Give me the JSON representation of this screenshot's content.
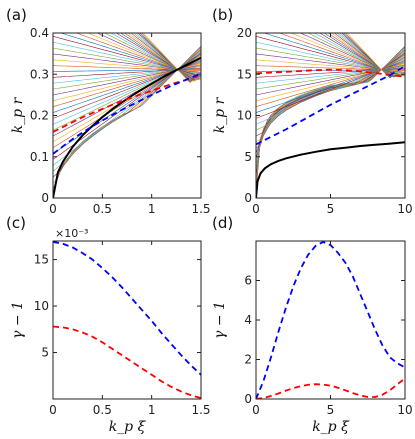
{
  "chart_data": [
    {
      "type": "line",
      "panel_label": "(a)",
      "xlabel": "",
      "ylabel": "k_p r",
      "xlim": [
        0,
        1.5
      ],
      "ylim": [
        0,
        0.4
      ],
      "xticks": [
        0,
        0.5,
        1,
        1.5
      ],
      "xtick_labels": [
        "0",
        "0.5",
        "1",
        "1.5"
      ],
      "yticks": [
        0,
        0.1,
        0.2,
        0.3,
        0.4
      ],
      "ytick_labels": [
        "0",
        "0.1",
        "0.2",
        "0.3",
        "0.4"
      ],
      "grid": false,
      "background_trajectories": {
        "count": 45,
        "style": "thin multicolored lines"
      },
      "series": [
        {
          "color": "#000000",
          "dash": "solid",
          "x": [
            0,
            0.05,
            0.1,
            0.2,
            0.3,
            0.4,
            0.5,
            0.6,
            0.7,
            0.8,
            0.9,
            1.0,
            1.1,
            1.2,
            1.3,
            1.4,
            1.5
          ],
          "y": [
            0,
            0.062,
            0.088,
            0.124,
            0.152,
            0.175,
            0.196,
            0.215,
            0.232,
            0.248,
            0.263,
            0.277,
            0.291,
            0.304,
            0.316,
            0.328,
            0.34
          ]
        },
        {
          "color": "#ff0000",
          "dash": "dashed",
          "x": [
            0,
            0.1,
            0.2,
            0.3,
            0.4,
            0.5,
            0.6,
            0.7,
            0.8,
            0.9,
            1.0,
            1.1,
            1.2,
            1.3,
            1.4,
            1.5
          ],
          "y": [
            0.16,
            0.172,
            0.184,
            0.196,
            0.206,
            0.216,
            0.226,
            0.235,
            0.244,
            0.252,
            0.26,
            0.268,
            0.276,
            0.283,
            0.29,
            0.297
          ]
        },
        {
          "color": "#0000ff",
          "dash": "dashed",
          "x": [
            0,
            0.1,
            0.2,
            0.3,
            0.4,
            0.5,
            0.6,
            0.7,
            0.8,
            0.9,
            1.0,
            1.1,
            1.2,
            1.3,
            1.4,
            1.5
          ],
          "y": [
            0.107,
            0.125,
            0.143,
            0.159,
            0.174,
            0.188,
            0.201,
            0.214,
            0.226,
            0.238,
            0.25,
            0.261,
            0.272,
            0.282,
            0.292,
            0.302
          ]
        }
      ]
    },
    {
      "type": "line",
      "panel_label": "(b)",
      "xlabel": "",
      "ylabel": "k_p r",
      "xlim": [
        0,
        10
      ],
      "ylim": [
        0,
        20
      ],
      "xticks": [
        0,
        5,
        10
      ],
      "xtick_labels": [
        "0",
        "5",
        "10"
      ],
      "yticks": [
        0,
        5,
        10,
        15,
        20
      ],
      "ytick_labels": [
        "0",
        "5",
        "10",
        "15",
        "20"
      ],
      "grid": false,
      "background_trajectories": {
        "count": 45,
        "style": "thin multicolored lines"
      },
      "series": [
        {
          "color": "#000000",
          "dash": "solid",
          "x": [
            0,
            0.1,
            0.3,
            0.6,
            1,
            1.5,
            2,
            3,
            4,
            5,
            6,
            7,
            8,
            9,
            10
          ],
          "y": [
            0,
            2.0,
            3.0,
            3.6,
            4.1,
            4.5,
            4.8,
            5.25,
            5.6,
            5.9,
            6.1,
            6.3,
            6.45,
            6.6,
            6.75
          ]
        },
        {
          "color": "#ff0000",
          "dash": "dashed",
          "x": [
            0,
            1,
            2,
            3,
            4,
            5,
            6,
            7,
            8,
            9,
            10
          ],
          "y": [
            15.1,
            15.2,
            15.3,
            15.4,
            15.5,
            15.55,
            15.5,
            15.35,
            15.15,
            14.9,
            14.7
          ]
        },
        {
          "color": "#0000ff",
          "dash": "dashed",
          "x": [
            0,
            1,
            2,
            3,
            4,
            5,
            6,
            7,
            8,
            9,
            10
          ],
          "y": [
            6.5,
            7.4,
            8.3,
            9.3,
            10.3,
            11.3,
            12.2,
            13.1,
            14.0,
            14.9,
            16.0
          ]
        }
      ]
    },
    {
      "type": "line",
      "panel_label": "(c)",
      "xlabel": "k_p ξ",
      "ylabel": "γ − 1",
      "y_multiplier": "×10⁻³",
      "xlim": [
        0,
        1.5
      ],
      "ylim": [
        0,
        17
      ],
      "xticks": [
        0,
        0.5,
        1,
        1.5
      ],
      "xtick_labels": [
        "0",
        "0.5",
        "1",
        "1.5"
      ],
      "yticks": [
        5,
        10,
        15
      ],
      "ytick_labels": [
        "5",
        "10",
        "15"
      ],
      "grid": false,
      "series": [
        {
          "color": "#0000ff",
          "dash": "dashed",
          "x": [
            0,
            0.1,
            0.2,
            0.3,
            0.4,
            0.5,
            0.6,
            0.7,
            0.8,
            0.9,
            1.0,
            1.1,
            1.2,
            1.3,
            1.4,
            1.5
          ],
          "y": [
            16.9,
            16.7,
            16.3,
            15.7,
            15.0,
            14.1,
            13.1,
            12.0,
            10.8,
            9.6,
            8.4,
            7.1,
            5.9,
            4.7,
            3.6,
            2.6
          ]
        },
        {
          "color": "#ff0000",
          "dash": "dashed",
          "x": [
            0,
            0.1,
            0.2,
            0.3,
            0.4,
            0.5,
            0.6,
            0.7,
            0.8,
            0.9,
            1.0,
            1.1,
            1.2,
            1.3,
            1.4,
            1.5
          ],
          "y": [
            7.8,
            7.7,
            7.5,
            7.15,
            6.7,
            6.1,
            5.4,
            4.7,
            4.0,
            3.3,
            2.6,
            1.9,
            1.3,
            0.8,
            0.4,
            0.1
          ]
        }
      ]
    },
    {
      "type": "line",
      "panel_label": "(d)",
      "xlabel": "k_p ξ",
      "ylabel": "γ − 1",
      "xlim": [
        0,
        10
      ],
      "ylim": [
        0,
        8
      ],
      "xticks": [
        0,
        5,
        10
      ],
      "xtick_labels": [
        "0",
        "5",
        "10"
      ],
      "yticks": [
        0,
        2,
        4,
        6
      ],
      "ytick_labels": [
        "0",
        "2",
        "4",
        "6"
      ],
      "grid": false,
      "series": [
        {
          "color": "#0000ff",
          "dash": "dashed",
          "x": [
            0,
            0.5,
            1,
            1.5,
            2,
            2.5,
            3,
            3.5,
            4,
            4.5,
            5,
            5.5,
            6,
            6.5,
            7,
            7.5,
            8,
            8.5,
            9,
            9.5,
            10
          ],
          "y": [
            0,
            0.9,
            2.1,
            3.4,
            4.6,
            5.7,
            6.6,
            7.3,
            7.75,
            7.95,
            7.8,
            7.4,
            6.9,
            6.2,
            5.3,
            4.4,
            3.5,
            2.7,
            2.1,
            1.8,
            1.6
          ]
        },
        {
          "color": "#ff0000",
          "dash": "dashed",
          "x": [
            0,
            0.5,
            1,
            1.5,
            2,
            2.5,
            3,
            3.5,
            4,
            4.5,
            5,
            5.5,
            6,
            6.5,
            7,
            7.5,
            8,
            8.5,
            9,
            9.5,
            10
          ],
          "y": [
            0,
            0.05,
            0.15,
            0.28,
            0.42,
            0.55,
            0.65,
            0.72,
            0.75,
            0.73,
            0.68,
            0.57,
            0.44,
            0.3,
            0.18,
            0.1,
            0.1,
            0.22,
            0.45,
            0.75,
            1.05
          ]
        }
      ]
    }
  ]
}
